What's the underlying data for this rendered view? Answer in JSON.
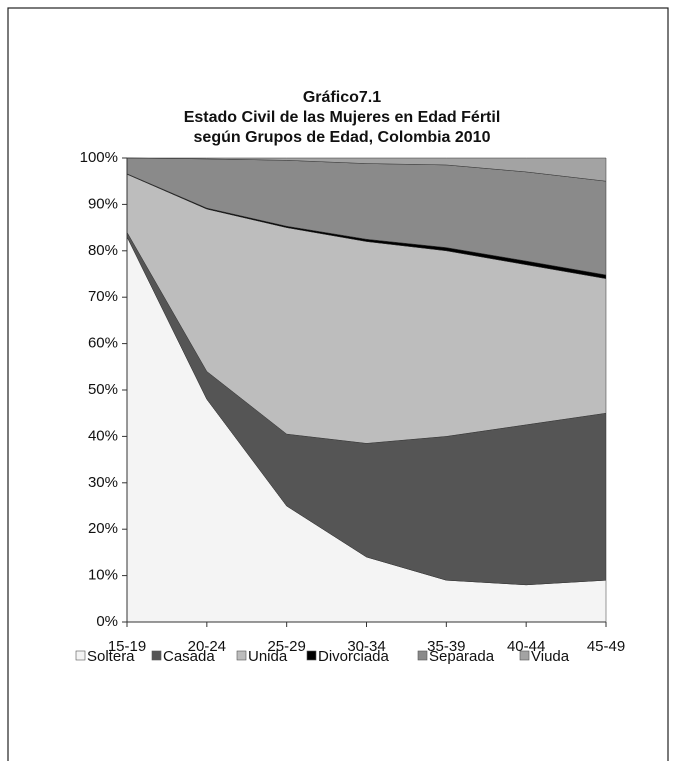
{
  "chart_data": {
    "type": "stacked_area",
    "title": [
      "Gráfico7.1",
      "Estado Civil de las Mujeres en Edad Fértil",
      "según Grupos de Edad, Colombia 2010"
    ],
    "categories": [
      "15-19",
      "20-24",
      "25-29",
      "30-34",
      "35-39",
      "40-44",
      "45-49"
    ],
    "series": [
      {
        "name": "Soltera",
        "color": "#f4f4f4",
        "values": [
          83,
          48,
          25,
          14,
          9,
          8,
          9
        ]
      },
      {
        "name": "Casada",
        "color": "#555555",
        "values": [
          1,
          6,
          15.5,
          24.5,
          31,
          34.5,
          36
        ]
      },
      {
        "name": "Unida",
        "color": "#bdbdbd",
        "values": [
          12.5,
          35,
          44.5,
          43.5,
          40,
          34.5,
          29
        ]
      },
      {
        "name": "Divorciada",
        "color": "#000000",
        "values": [
          0.1,
          0.2,
          0.3,
          0.5,
          0.7,
          0.8,
          0.8
        ]
      },
      {
        "name": "Separada",
        "color": "#8a8a8a",
        "values": [
          3.4,
          10.6,
          14.2,
          16.3,
          17.8,
          19.2,
          20.2
        ]
      },
      {
        "name": "Viuda",
        "color": "#a3a3a3",
        "values": [
          0,
          0.2,
          0.5,
          1.2,
          1.5,
          3,
          5
        ]
      }
    ],
    "ylim": [
      0,
      100
    ],
    "yticks": [
      {
        "value": 0,
        "label": "0%"
      },
      {
        "value": 10,
        "label": "10%"
      },
      {
        "value": 20,
        "label": "20%"
      },
      {
        "value": 30,
        "label": "30%"
      },
      {
        "value": 40,
        "label": "40%"
      },
      {
        "value": 50,
        "label": "50%"
      },
      {
        "value": 60,
        "label": "60%"
      },
      {
        "value": 70,
        "label": "70%"
      },
      {
        "value": 80,
        "label": "80%"
      },
      {
        "value": 90,
        "label": "90%"
      },
      {
        "value": 100,
        "label": "100%"
      }
    ]
  }
}
